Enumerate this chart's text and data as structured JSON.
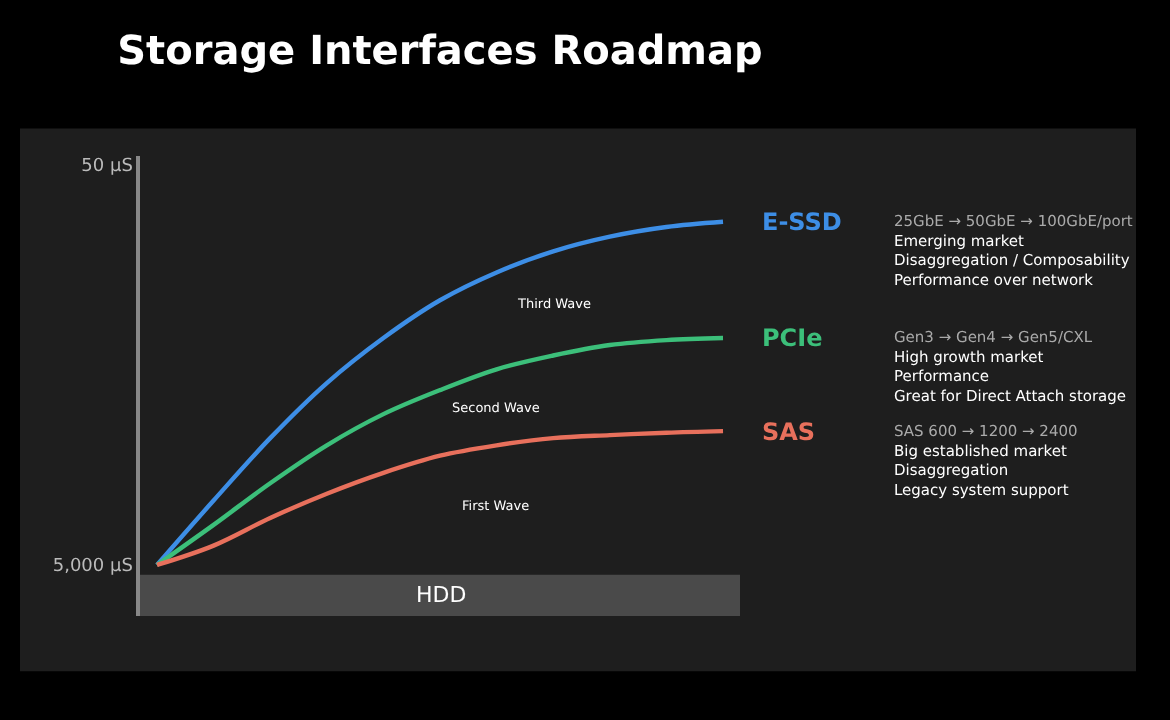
{
  "chart_data": {
    "type": "line",
    "title": "Storage Interfaces Roadmap",
    "categories": [
      null,
      null,
      null,
      null,
      null,
      null,
      null,
      null,
      null,
      null,
      null
    ],
    "series": [
      {
        "name": "E-SSD",
        "color": "#3d8ee6",
        "values": [
          5000,
          2380,
          1160,
          615,
          366,
          237,
          172,
          135,
          114,
          102,
          96
        ]
      },
      {
        "name": "PCIe",
        "color": "#3cbf7a",
        "values": [
          5000,
          3150,
          1950,
          1260,
          880,
          667,
          525,
          448,
          397,
          375,
          366
        ]
      },
      {
        "name": "SAS",
        "color": "#e8705c",
        "values": [
          5000,
          4000,
          2910,
          2200,
          1730,
          1420,
          1260,
          1160,
          1120,
          1090,
          1070
        ]
      }
    ],
    "log": "y",
    "ylim": [
      9000,
      45
    ],
    "yticks": [
      {
        "value": 50,
        "label": "50 µS"
      },
      {
        "value": 5000,
        "label": "5,000 µS"
      }
    ],
    "bands": [
      {
        "axis": "y",
        "from": 5600,
        "to": 9000,
        "label": "HDD",
        "color": "#4a4a4a"
      }
    ],
    "annotations": [
      "Third Wave",
      "Second Wave",
      "First Wave",
      "25GbE → 50GbE → 100GbE/port\nEmerging market\nDisaggregation / Composability\nPerformance over network",
      "Gen3 → Gen4 → Gen5/CXL\nHigh growth market\nPerformance\nGreat for Direct Attach storage",
      "SAS 600 → 1200 → 2400\nBig established market\nDisaggregation\nLegacy system support"
    ],
    "tick_labels": "y",
    "grid": false,
    "legend": false,
    "marker": "none",
    "line_style": "solid"
  }
}
